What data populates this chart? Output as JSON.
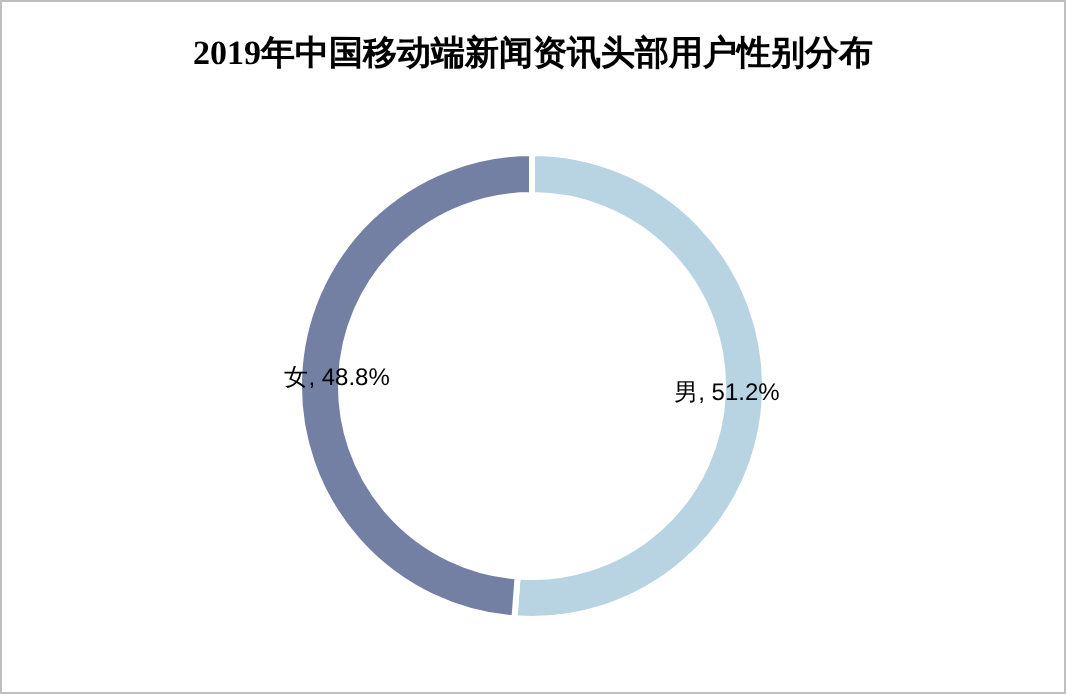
{
  "chart_data": {
    "type": "donut",
    "title": "2019年中国移动端新闻资讯头部用户性别分布",
    "categories": [
      "男",
      "女"
    ],
    "values": [
      51.2,
      48.8
    ],
    "value_labels": [
      "51.2%",
      "48.8%"
    ],
    "colors": [
      "#b8d4e3",
      "#737fa3"
    ],
    "legend": false
  }
}
